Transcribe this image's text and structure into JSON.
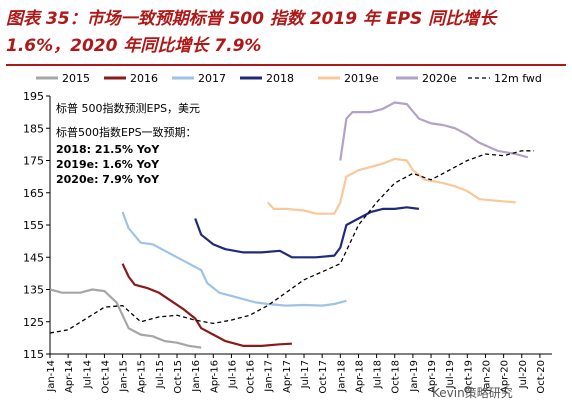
{
  "title": "图表 35：市场一致预期标普 500 指数 2019 年 EPS 同比增长 1.6%，2020 年同比增长 7.9%",
  "watermark": "Kevin策略研究",
  "chart_data": {
    "type": "line",
    "ylim": [
      115,
      195
    ],
    "y_ticks": [
      115,
      125,
      135,
      145,
      155,
      165,
      175,
      185,
      195
    ],
    "x_start": "2014-01",
    "x_end": "2020-12",
    "x_tick_labels": [
      "Jan-14",
      "Apr-14",
      "Jul-14",
      "Oct-14",
      "Jan-15",
      "Apr-15",
      "Jul-15",
      "Oct-15",
      "Jan-16",
      "Apr-16",
      "Jul-16",
      "Oct-16",
      "Jan-17",
      "Apr-17",
      "Jul-17",
      "Oct-17",
      "Jan-18",
      "Apr-18",
      "Jul-18",
      "Oct-18",
      "Jan-19",
      "Apr-19",
      "Jul-19",
      "Oct-19",
      "Jan-20",
      "Apr-20",
      "Jul-20",
      "Oct-20"
    ],
    "annotation": {
      "line1": "标普 500指数预测EPS，美元",
      "line2": "标普500指数EPS一致预期：",
      "line3": "2018: 21.5% YoY",
      "line4": "2019e: 1.6% YoY",
      "line5": "2020e: 7.9% YoY"
    },
    "series": [
      {
        "name": "2015",
        "color": "#a6a6a6",
        "dash": false,
        "points": [
          [
            "2014-01",
            135
          ],
          [
            "2014-03",
            134
          ],
          [
            "2014-06",
            134
          ],
          [
            "2014-08",
            135
          ],
          [
            "2014-10",
            134.5
          ],
          [
            "2014-12",
            131
          ],
          [
            "2015-01",
            127
          ],
          [
            "2015-02",
            123
          ],
          [
            "2015-04",
            121
          ],
          [
            "2015-06",
            120.5
          ],
          [
            "2015-08",
            119
          ],
          [
            "2015-10",
            118.5
          ],
          [
            "2015-12",
            117.5
          ],
          [
            "2016-02",
            117
          ]
        ]
      },
      {
        "name": "2016",
        "color": "#8b1a1a",
        "dash": false,
        "points": [
          [
            "2015-01",
            143
          ],
          [
            "2015-02",
            139
          ],
          [
            "2015-03",
            136.5
          ],
          [
            "2015-05",
            135.5
          ],
          [
            "2015-07",
            134
          ],
          [
            "2015-09",
            131.5
          ],
          [
            "2015-11",
            129
          ],
          [
            "2016-01",
            126
          ],
          [
            "2016-02",
            123
          ],
          [
            "2016-04",
            121
          ],
          [
            "2016-06",
            119
          ],
          [
            "2016-09",
            117.5
          ],
          [
            "2016-12",
            117.5
          ],
          [
            "2017-03",
            118
          ],
          [
            "2017-05",
            118.2
          ]
        ]
      },
      {
        "name": "2017",
        "color": "#9dc3e6",
        "dash": false,
        "points": [
          [
            "2015-01",
            159
          ],
          [
            "2015-02",
            154
          ],
          [
            "2015-04",
            149.5
          ],
          [
            "2015-06",
            149
          ],
          [
            "2015-08",
            147
          ],
          [
            "2015-10",
            145
          ],
          [
            "2015-12",
            143
          ],
          [
            "2016-02",
            141
          ],
          [
            "2016-03",
            137
          ],
          [
            "2016-05",
            134
          ],
          [
            "2016-07",
            133
          ],
          [
            "2016-09",
            132
          ],
          [
            "2016-11",
            131
          ],
          [
            "2017-01",
            130.5
          ],
          [
            "2017-04",
            130
          ],
          [
            "2017-07",
            130.2
          ],
          [
            "2017-10",
            130
          ],
          [
            "2017-12",
            130.5
          ],
          [
            "2018-02",
            131.5
          ]
        ]
      },
      {
        "name": "2018",
        "color": "#1f2b7a",
        "dash": false,
        "points": [
          [
            "2016-01",
            157
          ],
          [
            "2016-02",
            152
          ],
          [
            "2016-04",
            149
          ],
          [
            "2016-06",
            147.5
          ],
          [
            "2016-09",
            146.5
          ],
          [
            "2016-12",
            146.5
          ],
          [
            "2017-03",
            147
          ],
          [
            "2017-05",
            145
          ],
          [
            "2017-07",
            145
          ],
          [
            "2017-09",
            145
          ],
          [
            "2017-12",
            145.5
          ],
          [
            "2018-01",
            148
          ],
          [
            "2018-02",
            155
          ],
          [
            "2018-04",
            157
          ],
          [
            "2018-06",
            159
          ],
          [
            "2018-08",
            160
          ],
          [
            "2018-10",
            160
          ],
          [
            "2018-12",
            160.5
          ],
          [
            "2019-02",
            160
          ]
        ]
      },
      {
        "name": "2019e",
        "color": "#f9c89b",
        "dash": false,
        "points": [
          [
            "2017-01",
            162
          ],
          [
            "2017-02",
            160
          ],
          [
            "2017-04",
            160
          ],
          [
            "2017-07",
            159.5
          ],
          [
            "2017-09",
            158.5
          ],
          [
            "2017-12",
            158.5
          ],
          [
            "2018-01",
            162
          ],
          [
            "2018-02",
            170
          ],
          [
            "2018-04",
            172
          ],
          [
            "2018-06",
            173
          ],
          [
            "2018-08",
            174
          ],
          [
            "2018-10",
            175.5
          ],
          [
            "2018-12",
            175
          ],
          [
            "2019-01",
            172
          ],
          [
            "2019-03",
            169
          ],
          [
            "2019-06",
            168
          ],
          [
            "2019-08",
            167
          ],
          [
            "2019-10",
            165.5
          ],
          [
            "2019-12",
            163
          ],
          [
            "2020-03",
            162.5
          ],
          [
            "2020-06",
            162
          ]
        ]
      },
      {
        "name": "2020e",
        "color": "#b3a2c7",
        "dash": false,
        "points": [
          [
            "2018-01",
            175
          ],
          [
            "2018-02",
            188
          ],
          [
            "2018-03",
            190
          ],
          [
            "2018-06",
            190
          ],
          [
            "2018-08",
            191
          ],
          [
            "2018-10",
            193
          ],
          [
            "2018-12",
            192.5
          ],
          [
            "2019-02",
            188
          ],
          [
            "2019-04",
            186.5
          ],
          [
            "2019-06",
            186
          ],
          [
            "2019-08",
            185
          ],
          [
            "2019-10",
            183
          ],
          [
            "2019-12",
            180.5
          ],
          [
            "2020-03",
            178
          ],
          [
            "2020-06",
            177
          ],
          [
            "2020-08",
            176
          ]
        ]
      },
      {
        "name": "12m fwd",
        "color": "#000000",
        "dash": true,
        "points": [
          [
            "2014-01",
            121.5
          ],
          [
            "2014-04",
            122.5
          ],
          [
            "2014-07",
            126
          ],
          [
            "2014-10",
            129.5
          ],
          [
            "2015-01",
            130
          ],
          [
            "2015-04",
            125
          ],
          [
            "2015-07",
            126.5
          ],
          [
            "2015-10",
            127
          ],
          [
            "2016-01",
            125.5
          ],
          [
            "2016-04",
            124.5
          ],
          [
            "2016-07",
            125.5
          ],
          [
            "2016-10",
            127
          ],
          [
            "2017-01",
            130
          ],
          [
            "2017-04",
            134
          ],
          [
            "2017-07",
            138
          ],
          [
            "2017-10",
            140.5
          ],
          [
            "2018-01",
            143
          ],
          [
            "2018-04",
            155
          ],
          [
            "2018-07",
            162
          ],
          [
            "2018-10",
            168
          ],
          [
            "2019-01",
            171
          ],
          [
            "2019-04",
            169
          ],
          [
            "2019-07",
            172
          ],
          [
            "2019-10",
            175
          ],
          [
            "2020-01",
            177
          ],
          [
            "2020-04",
            176.5
          ],
          [
            "2020-07",
            178
          ],
          [
            "2020-09",
            178
          ]
        ]
      }
    ]
  }
}
